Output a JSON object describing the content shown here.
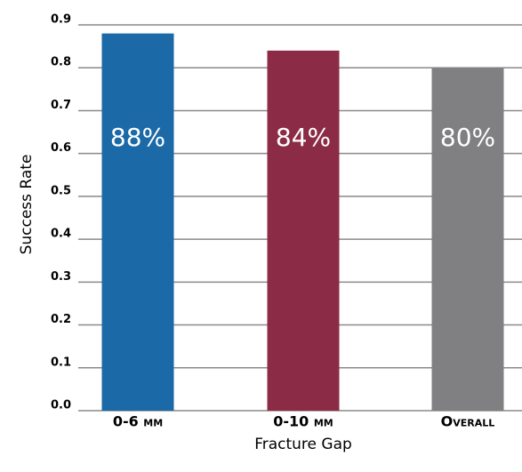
{
  "chart_data": {
    "type": "bar",
    "x_label": "Fracture Gap",
    "y_label": "Success Rate",
    "categories": [
      "0-6 mm",
      "0-10 mm",
      "Overall"
    ],
    "values": [
      0.88,
      0.84,
      0.8
    ],
    "value_labels": [
      "88%",
      "84%",
      "80%"
    ],
    "colors": [
      "#1b6aa7",
      "#8c2b46",
      "#808083"
    ],
    "ylim": [
      0,
      0.9
    ],
    "yticks": [
      {
        "value": 0,
        "label": "0.0"
      },
      0.1,
      0.2,
      0.3,
      0.4,
      0.5,
      0.6,
      0.7,
      0.8,
      0.9
    ],
    "grid": true
  }
}
